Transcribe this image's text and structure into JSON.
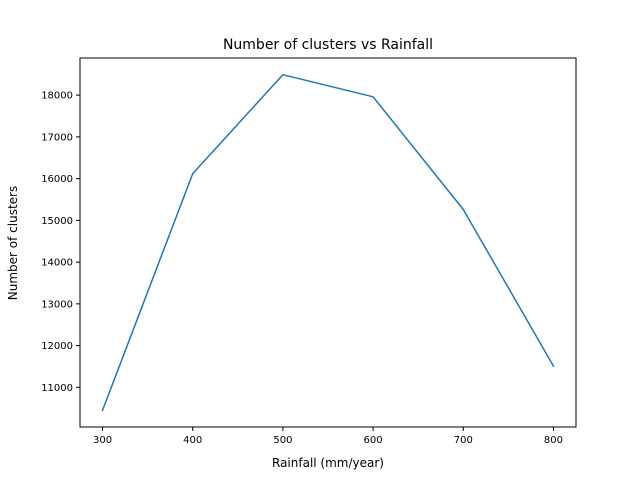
{
  "chart_data": {
    "type": "line",
    "title": "Number of clusters vs Rainfall",
    "xlabel": "Rainfall (mm/year)",
    "ylabel": "Number of clusters",
    "x": [
      300,
      400,
      500,
      600,
      700,
      800
    ],
    "series": [
      {
        "values": [
          10450,
          16120,
          18490,
          17960,
          15260,
          11510
        ],
        "color": "#1f77b4"
      }
    ],
    "xlim": [
      275,
      825
    ],
    "ylim": [
      10050,
      18890
    ],
    "xticks": [
      300,
      400,
      500,
      600,
      700,
      800
    ],
    "xtick_labels": [
      "300",
      "400",
      "500",
      "600",
      "700",
      "800"
    ],
    "yticks": [
      11000,
      12000,
      13000,
      14000,
      15000,
      16000,
      17000,
      18000
    ],
    "ytick_labels": [
      "11000",
      "12000",
      "13000",
      "14000",
      "15000",
      "16000",
      "17000",
      "18000"
    ],
    "grid": false,
    "legend": "none"
  }
}
